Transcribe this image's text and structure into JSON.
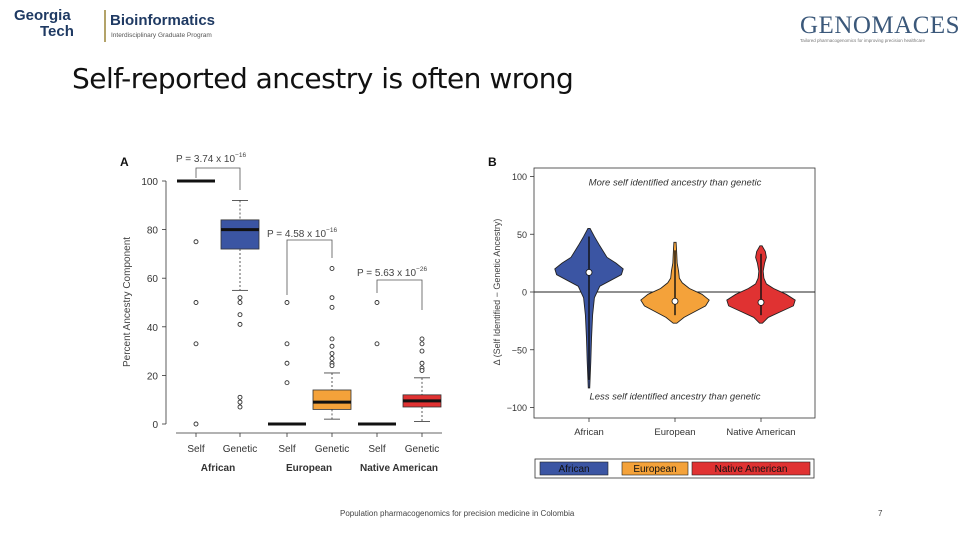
{
  "header": {
    "institution_line1": "Georgia",
    "institution_line2": "Tech",
    "program_title": "Bioinformatics",
    "program_subtitle": "Interdisciplinary Graduate Program",
    "partner_name": "GENOMACES",
    "partner_tagline": "Tailored pharmacogenomics for improving precision healthcare",
    "accent_color": "#b3a369"
  },
  "slide": {
    "title": "Self-reported ancestry is often wrong",
    "footer": "Population pharmacogenomics for precision medicine in Colombia",
    "page_number": "7"
  },
  "chart_data": [
    {
      "type": "box",
      "panel_label": "A",
      "ylabel": "Percent Ancestry Component",
      "ylim": [
        0,
        100
      ],
      "yticks": [
        0,
        20,
        40,
        60,
        80,
        100
      ],
      "categories": [
        "Self",
        "Genetic",
        "Self",
        "Genetic",
        "Self",
        "Genetic"
      ],
      "groups": [
        "African",
        "European",
        "Native American"
      ],
      "boxes": [
        {
          "group": "African",
          "label": "Self",
          "color": "#ffffff",
          "median": 100,
          "q1": 100,
          "q3": 100,
          "whisker_low": 100,
          "whisker_high": 100,
          "outliers": [
            75,
            50,
            33,
            0
          ]
        },
        {
          "group": "African",
          "label": "Genetic",
          "color": "#3b55a3",
          "median": 80,
          "q1": 72,
          "q3": 84,
          "whisker_low": 55,
          "whisker_high": 92,
          "outliers": [
            52,
            50,
            45,
            41,
            11,
            9,
            7
          ]
        },
        {
          "group": "European",
          "label": "Self",
          "color": "#ffffff",
          "median": 0,
          "q1": 0,
          "q3": 0,
          "whisker_low": 0,
          "whisker_high": 0,
          "outliers": [
            50,
            33,
            25,
            17
          ]
        },
        {
          "group": "European",
          "label": "Genetic",
          "color": "#f4a23a",
          "median": 9,
          "q1": 6,
          "q3": 14,
          "whisker_low": 2,
          "whisker_high": 21,
          "outliers": [
            64,
            52,
            48,
            35,
            32,
            29,
            27,
            25,
            24
          ]
        },
        {
          "group": "Native American",
          "label": "Self",
          "color": "#ffffff",
          "median": 0,
          "q1": 0,
          "q3": 0,
          "whisker_low": 0,
          "whisker_high": 0,
          "outliers": [
            50,
            33
          ]
        },
        {
          "group": "Native American",
          "label": "Genetic",
          "color": "#e03232",
          "median": 9.5,
          "q1": 7,
          "q3": 12,
          "whisker_low": 1,
          "whisker_high": 19,
          "outliers": [
            35,
            33,
            30,
            25,
            23,
            22
          ]
        }
      ],
      "annotations": [
        {
          "p_value": "P = 3.74 x 10",
          "exponent": "−16"
        },
        {
          "p_value": "P = 4.58 x 10",
          "exponent": "−16"
        },
        {
          "p_value": "P = 5.63 x 10",
          "exponent": "−26"
        }
      ]
    },
    {
      "type": "violin",
      "panel_label": "B",
      "ylabel": "Δ (Self Identified − Genetic Ancestry)",
      "ylim": [
        -110,
        105
      ],
      "yticks": [
        100,
        50,
        0,
        -50,
        -100
      ],
      "ytick_labels": [
        "100",
        "50",
        "0",
        "−50",
        "−100"
      ],
      "categories": [
        "African",
        "European",
        "Native American"
      ],
      "annotation_top": "More self identified ancestry than genetic",
      "annotation_bottom": "Less self identified ancestry than genetic",
      "series": [
        {
          "name": "African",
          "color": "#3b55a3",
          "median": 17,
          "range": [
            -83,
            55
          ],
          "density": [
            [
              -83,
              0.02
            ],
            [
              -60,
              0.05
            ],
            [
              -40,
              0.07
            ],
            [
              -20,
              0.1
            ],
            [
              -5,
              0.15
            ],
            [
              5,
              0.3
            ],
            [
              10,
              0.6
            ],
            [
              15,
              0.9
            ],
            [
              20,
              0.95
            ],
            [
              25,
              0.75
            ],
            [
              30,
              0.5
            ],
            [
              40,
              0.3
            ],
            [
              48,
              0.15
            ],
            [
              55,
              0.03
            ]
          ]
        },
        {
          "name": "European",
          "color": "#f4a23a",
          "median": -8,
          "range": [
            -27,
            43
          ],
          "density": [
            [
              -27,
              0.05
            ],
            [
              -22,
              0.25
            ],
            [
              -17,
              0.55
            ],
            [
              -12,
              0.85
            ],
            [
              -7,
              0.95
            ],
            [
              -2,
              0.75
            ],
            [
              3,
              0.4
            ],
            [
              8,
              0.2
            ],
            [
              12,
              0.12
            ],
            [
              18,
              0.1
            ],
            [
              25,
              0.06
            ],
            [
              32,
              0.05
            ],
            [
              38,
              0.04
            ],
            [
              43,
              0.03
            ]
          ]
        },
        {
          "name": "Native American",
          "color": "#e03232",
          "median": -9,
          "range": [
            -27,
            40
          ],
          "density": [
            [
              -27,
              0.04
            ],
            [
              -22,
              0.2
            ],
            [
              -17,
              0.55
            ],
            [
              -12,
              0.9
            ],
            [
              -7,
              0.95
            ],
            [
              -2,
              0.7
            ],
            [
              3,
              0.35
            ],
            [
              7,
              0.15
            ],
            [
              12,
              0.08
            ],
            [
              18,
              0.06
            ],
            [
              25,
              0.1
            ],
            [
              30,
              0.15
            ],
            [
              35,
              0.12
            ],
            [
              40,
              0.03
            ]
          ]
        }
      ],
      "legend": [
        "African",
        "European",
        "Native American"
      ],
      "legend_position": "bottom"
    }
  ]
}
